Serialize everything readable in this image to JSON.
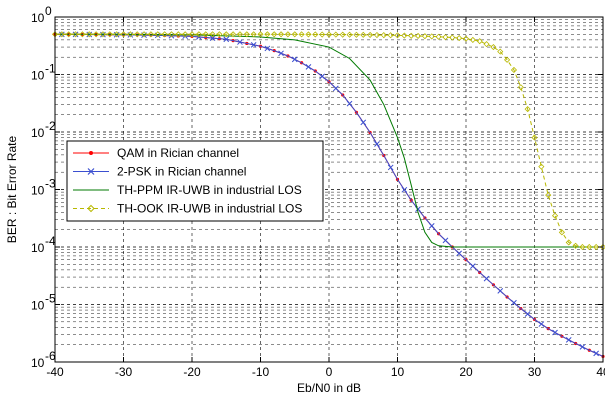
{
  "chart_data": {
    "type": "line",
    "title": "",
    "xlabel": "Eb/N0 in dB",
    "ylabel": "BER : Bit Error Rate",
    "xlim": [
      -40,
      40
    ],
    "ylim": [
      1e-06,
      1
    ],
    "yscale": "log",
    "grid": "on (major and minor)",
    "legend_position": "middle-left",
    "x_ticks": [
      "-40",
      "-30",
      "-20",
      "-10",
      "0",
      "10",
      "20",
      "30",
      "40"
    ],
    "y_tick_exponents": [
      "0",
      "-1",
      "-2",
      "-3",
      "-4",
      "-5",
      "-6"
    ],
    "y_tick_base": "10",
    "series": [
      {
        "name": "QAM in Rician channel",
        "color": "#ff0000",
        "marker": "dot",
        "line_style": "solid",
        "x": [
          -40,
          -35,
          -30,
          -25,
          -20,
          -15,
          -10,
          -8,
          -6,
          -4,
          -2,
          0,
          2,
          4,
          6,
          8,
          10,
          12,
          14,
          16,
          18,
          20,
          22,
          24,
          26,
          28,
          30,
          32,
          34,
          36,
          38,
          40
        ],
        "y": [
          0.5,
          0.497,
          0.49,
          0.48,
          0.46,
          0.41,
          0.31,
          0.26,
          0.21,
          0.16,
          0.115,
          0.075,
          0.044,
          0.022,
          0.0098,
          0.0039,
          0.0015,
          0.00065,
          0.00032,
          0.00017,
          0.0001,
          6e-05,
          3.6e-05,
          2.2e-05,
          1.35e-05,
          8.5e-06,
          5.5e-06,
          3.8e-06,
          2.8e-06,
          2.1e-06,
          1.6e-06,
          1.25e-06
        ]
      },
      {
        "name": "2-PSK in Rician channel",
        "color": "#3b4fd0",
        "marker": "x",
        "line_style": "solid",
        "x": [
          -40,
          -35,
          -30,
          -25,
          -20,
          -15,
          -10,
          -8,
          -6,
          -4,
          -2,
          0,
          2,
          4,
          6,
          8,
          10,
          12,
          14,
          16,
          18,
          20,
          22,
          24,
          26,
          28,
          30,
          32,
          34,
          36,
          38,
          40
        ],
        "y": [
          0.5,
          0.497,
          0.49,
          0.48,
          0.46,
          0.41,
          0.31,
          0.26,
          0.21,
          0.16,
          0.115,
          0.075,
          0.044,
          0.022,
          0.0098,
          0.0039,
          0.0015,
          0.00065,
          0.00032,
          0.00017,
          0.0001,
          6e-05,
          3.6e-05,
          2.2e-05,
          1.35e-05,
          8.5e-06,
          5.5e-06,
          3.8e-06,
          2.8e-06,
          2.1e-06,
          1.6e-06,
          1.25e-06
        ]
      },
      {
        "name": "TH-PPM IR-UWB in industrial LOS",
        "color": "#007a00",
        "marker": "none",
        "line_style": "solid",
        "x": [
          -40,
          -30,
          -20,
          -10,
          -5,
          0,
          3,
          6,
          8,
          10,
          11,
          12,
          13,
          14,
          15,
          16,
          18,
          20,
          25,
          30,
          35,
          40
        ],
        "y": [
          0.5,
          0.5,
          0.49,
          0.45,
          0.4,
          0.3,
          0.19,
          0.08,
          0.03,
          0.008,
          0.0035,
          0.0012,
          0.0004,
          0.00018,
          0.00012,
          0.000105,
          0.0001,
          0.0001,
          0.0001,
          0.0001,
          0.0001,
          0.0001
        ]
      },
      {
        "name": "TH-OOK IR-UWB in industrial LOS",
        "color": "#b8b800",
        "marker": "diamond",
        "line_style": "dashed",
        "x": [
          -40,
          -30,
          -20,
          -10,
          -5,
          0,
          5,
          10,
          15,
          18,
          20,
          22,
          24,
          25,
          26,
          27,
          28,
          29,
          30,
          31,
          32,
          33,
          34,
          35,
          36,
          37,
          38,
          39,
          40
        ],
        "y": [
          0.5,
          0.5,
          0.5,
          0.5,
          0.5,
          0.495,
          0.49,
          0.48,
          0.46,
          0.44,
          0.42,
          0.38,
          0.3,
          0.25,
          0.18,
          0.12,
          0.06,
          0.025,
          0.008,
          0.0025,
          0.0008,
          0.00035,
          0.00018,
          0.00012,
          0.000105,
          0.0001,
          0.0001,
          0.0001,
          0.0001
        ]
      }
    ]
  }
}
